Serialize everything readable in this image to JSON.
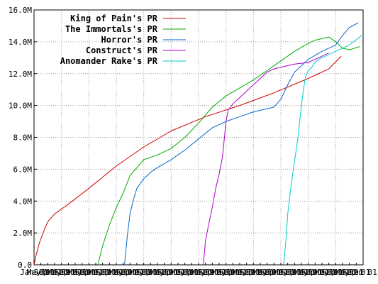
{
  "chart_data": {
    "type": "line",
    "title": "",
    "xlabel": "",
    "ylabel": "",
    "grid": true,
    "legend": "top-left",
    "ylim": [
      0,
      16000000
    ],
    "y_ticks": [
      {
        "value": 0,
        "label": "0.0"
      },
      {
        "value": 2000000,
        "label": "2.0M"
      },
      {
        "value": 4000000,
        "label": "4.0M"
      },
      {
        "value": 6000000,
        "label": "6.0M"
      },
      {
        "value": 8000000,
        "label": "8.0M"
      },
      {
        "value": 10000000,
        "label": "10.0M"
      },
      {
        "value": 12000000,
        "label": "12.0M"
      },
      {
        "value": 14000000,
        "label": "14.0M"
      },
      {
        "value": 16000000,
        "label": "16.0M"
      }
    ],
    "x_ticks": [
      "Jan 01",
      "May 01",
      "Sep 01",
      "Jan 01",
      "May 01",
      "Sep 01",
      "Jan 01",
      "May 01",
      "Sep 01",
      "Jan 01",
      "May 01",
      "Sep 01",
      "Jan 01",
      "May 01",
      "Sep 01",
      "Jan 01",
      "May 01",
      "Sep 01",
      "Jan 01",
      "May 01",
      "Sep 01",
      "Jan 01",
      "May 01",
      "Sep 01",
      "Jan 01",
      "May 01",
      "Sep 01",
      "Jan 01",
      "May 01",
      "Sep 01",
      "Jan 01",
      "May 01",
      "Sep 01",
      "Jan 01",
      "May 01",
      "Sep 01",
      "Jan 01",
      "May 01",
      "Sep 01",
      "Jan 01",
      "May 01",
      "Sep 01",
      "Jan 01",
      "May 01",
      "Sep 01",
      "Jan 01",
      "May 01",
      "Sep 01",
      "Jan 01"
    ],
    "xlim": [
      0,
      48
    ],
    "series": [
      {
        "name": "King of Pain's PR",
        "color": "#cc0000",
        "x": [
          0,
          0.3,
          0.8,
          1.5,
          2,
          3,
          5,
          8,
          12,
          16,
          20,
          25,
          30,
          35,
          40,
          43,
          44.8
        ],
        "y": [
          0,
          600000,
          1400000,
          2200000,
          2700000,
          3200000,
          3800000,
          4800000,
          6200000,
          7400000,
          8400000,
          9300000,
          10000000,
          10800000,
          11700000,
          12300000,
          13100000
        ]
      },
      {
        "name": "The Immortals's PR",
        "color": "#00aa00",
        "x": [
          9.3,
          10,
          11,
          12,
          13,
          14,
          16,
          18,
          20,
          22,
          24,
          26,
          28,
          30,
          32,
          34,
          36,
          38,
          40,
          41,
          42,
          43,
          44,
          45,
          46,
          47.5
        ],
        "y": [
          0,
          1200000,
          2500000,
          3600000,
          4500000,
          5600000,
          6600000,
          6900000,
          7300000,
          8000000,
          8900000,
          9900000,
          10600000,
          11100000,
          11600000,
          12200000,
          12800000,
          13400000,
          13900000,
          14100000,
          14200000,
          14300000,
          14000000,
          13600000,
          13500000,
          13700000
        ]
      },
      {
        "name": "Horror's PR",
        "color": "#0066cc",
        "x": [
          13.2,
          13.6,
          14,
          14.5,
          15,
          16,
          17,
          18,
          20,
          22,
          24,
          26,
          28,
          30,
          32,
          34,
          35,
          36,
          37,
          38,
          40,
          42,
          44,
          45,
          46,
          47.3
        ],
        "y": [
          0,
          1800000,
          3200000,
          4100000,
          4800000,
          5400000,
          5800000,
          6100000,
          6600000,
          7200000,
          7900000,
          8600000,
          9000000,
          9300000,
          9600000,
          9800000,
          9900000,
          10400000,
          11300000,
          12100000,
          12900000,
          13400000,
          13800000,
          14400000,
          14900000,
          15200000
        ]
      },
      {
        "name": "Construct's PR",
        "color": "#aa00cc",
        "x": [
          24.7,
          25,
          25.5,
          26,
          26.5,
          27,
          27.5,
          28,
          28.3,
          29,
          30,
          32,
          34,
          35,
          36,
          38,
          40,
          42,
          43
        ],
        "y": [
          0,
          1500000,
          2600000,
          3600000,
          4800000,
          5700000,
          6800000,
          9000000,
          9700000,
          10100000,
          10500000,
          11300000,
          12100000,
          12300000,
          12400000,
          12600000,
          12700000,
          13100000,
          13300000
        ]
      },
      {
        "name": "Anomander Rake's PR",
        "color": "#00cccc",
        "x": [
          36.4,
          36.8,
          37,
          37.5,
          38,
          38.5,
          39,
          39.3,
          39.6,
          40,
          40.5,
          41,
          41.5,
          42,
          44,
          46,
          47.8
        ],
        "y": [
          0,
          1800000,
          3200000,
          5000000,
          6500000,
          8000000,
          10000000,
          11000000,
          11800000,
          12200000,
          12400000,
          12700000,
          12900000,
          13000000,
          13400000,
          13800000,
          14400000
        ]
      }
    ]
  }
}
